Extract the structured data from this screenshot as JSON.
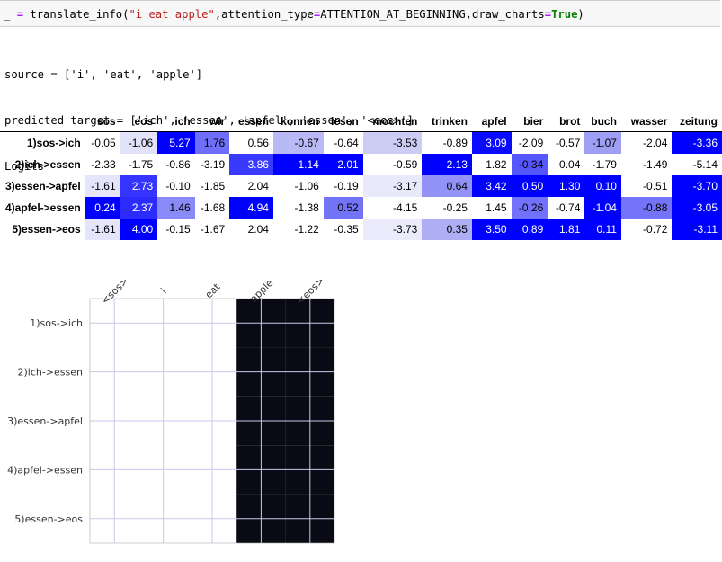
{
  "cell": {
    "code": "_ = translate_info(\"i eat apple\",attention_type=ATTENTION_AT_BEGINNING,draw_charts=True)",
    "code_parts": {
      "p1": "_ ",
      "p2": "=",
      "p3": " translate_info(",
      "p4": "\"i eat apple\"",
      "p5": ",attention_type",
      "p6": "=",
      "p7": "ATTENTION_AT_BEGINNING,draw_charts",
      "p8": "=",
      "p9": "True",
      "p10": ")"
    }
  },
  "output": {
    "source_line": "source = ['i', 'eat', 'apple']",
    "target_line": "predicted target = ['ich', 'essen', 'apfel', 'essen', '<eos>']",
    "logits_title": "Logits"
  },
  "logits_table": {
    "columns": [
      "sos",
      "eos",
      "ich",
      "wir",
      "essen",
      "konnen",
      "lesen",
      "mochten",
      "trinken",
      "apfel",
      "bier",
      "brot",
      "buch",
      "wasser",
      "zeitung"
    ],
    "rows": [
      {
        "label": "1)sos->ich",
        "values": [
          "-0.05",
          "-1.06",
          "5.27",
          "1.76",
          "0.56",
          "-0.67",
          "-0.64",
          "-3.53",
          "-0.89",
          "3.09",
          "-2.09",
          "-0.57",
          "-1.07",
          "-2.04",
          "-3.36"
        ]
      },
      {
        "label": "2)ich->essen",
        "values": [
          "-2.33",
          "-1.75",
          "-0.86",
          "-3.19",
          "3.86",
          "1.14",
          "2.01",
          "-0.59",
          "2.13",
          "1.82",
          "-0.34",
          "0.04",
          "-1.79",
          "-1.49",
          "-5.14"
        ]
      },
      {
        "label": "3)essen->apfel",
        "values": [
          "-1.61",
          "2.73",
          "-0.10",
          "-1.85",
          "2.04",
          "-1.06",
          "-0.19",
          "-3.17",
          "0.64",
          "3.42",
          "0.50",
          "1.30",
          "0.10",
          "-0.51",
          "-3.70"
        ]
      },
      {
        "label": "4)apfel->essen",
        "values": [
          "0.24",
          "2.37",
          "1.46",
          "-1.68",
          "4.94",
          "-1.38",
          "0.52",
          "-4.15",
          "-0.25",
          "1.45",
          "-0.26",
          "-0.74",
          "-1.04",
          "-0.88",
          "-3.05"
        ]
      },
      {
        "label": "5)essen->eos",
        "values": [
          "-1.61",
          "4.00",
          "-0.15",
          "-1.67",
          "2.04",
          "-1.22",
          "-0.35",
          "-3.73",
          "0.35",
          "3.50",
          "0.89",
          "1.81",
          "0.11",
          "-0.72",
          "-3.11"
        ]
      }
    ],
    "colors": [
      [
        "#ffffff",
        "#e2e2fb",
        "#0000ff",
        "#6e6ef8",
        "#ffffff",
        "#b9b9f6",
        "#ffffff",
        "#ccccf5",
        "#ffffff",
        "#0a0aff",
        "#ffffff",
        "#ffffff",
        "#9e9ef5",
        "#ffffff",
        "#0000ff"
      ],
      [
        "#ffffff",
        "#ffffff",
        "#ffffff",
        "#ffffff",
        "#3a3aff",
        "#0000ff",
        "#0000ff",
        "#ffffff",
        "#0000ff",
        "#ffffff",
        "#5656ff",
        "#ffffff",
        "#ffffff",
        "#ffffff",
        "#ffffff"
      ],
      [
        "#e4e4fb",
        "#3535ff",
        "#ffffff",
        "#ffffff",
        "#ffffff",
        "#ffffff",
        "#ffffff",
        "#e9e9fc",
        "#9393f7",
        "#0000ff",
        "#0000ff",
        "#0000ff",
        "#0000ff",
        "#ffffff",
        "#0000ff"
      ],
      [
        "#0000ff",
        "#2c2cff",
        "#8989f7",
        "#ffffff",
        "#0000ff",
        "#ffffff",
        "#7373f8",
        "#ffffff",
        "#ffffff",
        "#ffffff",
        "#7171fb",
        "#ffffff",
        "#0000ff",
        "#7474f8",
        "#0000ff"
      ],
      [
        "#e4e4fb",
        "#0000ff",
        "#ffffff",
        "#ffffff",
        "#ffffff",
        "#ffffff",
        "#ffffff",
        "#ebebfc",
        "#aeaef5",
        "#0000ff",
        "#0000ff",
        "#0000ff",
        "#0000ff",
        "#ffffff",
        "#0000ff"
      ]
    ],
    "dark_text_cols_light": "#000000",
    "light_text": "#ffffff"
  },
  "attention_chart": {
    "x_labels": [
      "<sos>",
      "i",
      "eat",
      "apple",
      "<eos>"
    ],
    "y_labels": [
      "1)sos->ich",
      "2)ich->essen",
      "3)essen->apfel",
      "4)apfel->essen",
      "5)essen->eos"
    ],
    "weights": [
      [
        0,
        0,
        0,
        1,
        1
      ],
      [
        0,
        0,
        0,
        1,
        1
      ],
      [
        0,
        0,
        0,
        1,
        1
      ],
      [
        0,
        0,
        0,
        1,
        1
      ],
      [
        0,
        0,
        0,
        1,
        1
      ]
    ],
    "colormap": {
      "low": "#ffffff",
      "high": "#0a0a14"
    },
    "grid_color": "#c8c8ec"
  }
}
